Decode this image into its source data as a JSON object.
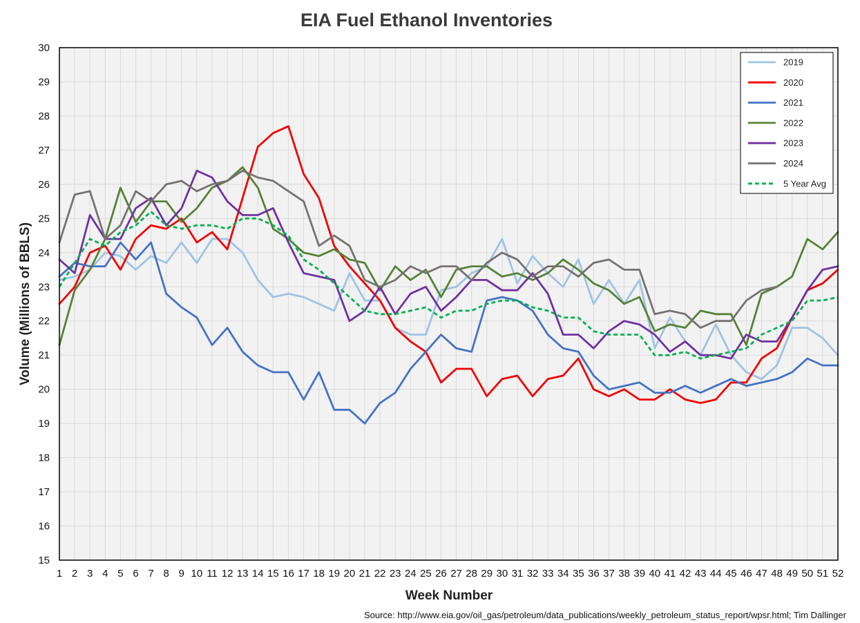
{
  "chart_data": {
    "type": "line",
    "title": "EIA Fuel Ethanol Inventories",
    "xlabel": "Week Number",
    "ylabel": "Volume (Millions of BBLS)",
    "xlim": [
      1,
      52
    ],
    "ylim": [
      15,
      30
    ],
    "yticks": [
      15,
      16,
      17,
      18,
      19,
      20,
      21,
      22,
      23,
      24,
      25,
      26,
      27,
      28,
      29,
      30
    ],
    "x": [
      1,
      2,
      3,
      4,
      5,
      6,
      7,
      8,
      9,
      10,
      11,
      12,
      13,
      14,
      15,
      16,
      17,
      18,
      19,
      20,
      21,
      22,
      23,
      24,
      25,
      26,
      27,
      28,
      29,
      30,
      31,
      32,
      33,
      34,
      35,
      36,
      37,
      38,
      39,
      40,
      41,
      42,
      43,
      44,
      45,
      46,
      47,
      48,
      49,
      50,
      51,
      52
    ],
    "grid": true,
    "legend_position": "top-right",
    "series": [
      {
        "name": "2019",
        "color": "#9DC3E6",
        "dashed": false,
        "values": [
          23.2,
          23.3,
          23.5,
          24.0,
          23.9,
          23.5,
          23.9,
          23.7,
          24.3,
          23.7,
          24.4,
          24.4,
          24.0,
          23.2,
          22.7,
          22.8,
          22.7,
          22.5,
          22.3,
          23.4,
          22.6,
          22.6,
          21.8,
          21.6,
          21.6,
          22.9,
          23.0,
          23.4,
          23.6,
          24.4,
          23.1,
          23.9,
          23.4,
          23.0,
          23.8,
          22.5,
          23.2,
          22.5,
          23.2,
          21.2,
          22.1,
          21.4,
          21.0,
          21.9,
          21.0,
          20.5,
          20.3,
          20.7,
          21.8,
          21.8,
          21.5,
          21.0
        ]
      },
      {
        "name": "2020",
        "color": "#F00000",
        "dashed": false,
        "values": [
          22.5,
          23.0,
          24.0,
          24.2,
          23.5,
          24.4,
          24.8,
          24.7,
          25.0,
          24.3,
          24.6,
          24.1,
          25.6,
          27.1,
          27.5,
          27.7,
          26.3,
          25.6,
          24.2,
          23.6,
          23.1,
          22.6,
          21.8,
          21.4,
          21.1,
          20.2,
          20.6,
          20.6,
          19.8,
          20.3,
          20.4,
          19.8,
          20.3,
          20.4,
          20.9,
          20.0,
          19.8,
          20.0,
          19.7,
          19.7,
          20.0,
          19.7,
          19.6,
          19.7,
          20.2,
          20.2,
          20.9,
          21.2,
          22.1,
          22.9,
          23.1,
          23.5
        ]
      },
      {
        "name": "2021",
        "color": "#4472C4",
        "dashed": false,
        "values": [
          23.3,
          23.7,
          23.6,
          23.6,
          24.3,
          23.8,
          24.3,
          22.8,
          22.4,
          22.1,
          21.3,
          21.8,
          21.1,
          20.7,
          20.5,
          20.5,
          19.7,
          20.5,
          19.4,
          19.4,
          19.0,
          19.6,
          19.9,
          20.6,
          21.1,
          21.6,
          21.2,
          21.1,
          22.6,
          22.7,
          22.6,
          22.3,
          21.6,
          21.2,
          21.1,
          20.4,
          20.0,
          20.1,
          20.2,
          19.9,
          19.9,
          20.1,
          19.9,
          20.1,
          20.3,
          20.1,
          20.2,
          20.3,
          20.5,
          20.9,
          20.7,
          20.7
        ]
      },
      {
        "name": "2022",
        "color": "#548235",
        "dashed": false,
        "values": [
          21.3,
          22.9,
          23.5,
          24.4,
          25.9,
          24.9,
          25.5,
          25.5,
          24.9,
          25.3,
          25.9,
          26.1,
          26.5,
          25.9,
          24.7,
          24.4,
          24.0,
          23.9,
          24.1,
          23.8,
          23.7,
          22.9,
          23.6,
          23.2,
          23.5,
          22.7,
          23.5,
          23.6,
          23.6,
          23.3,
          23.4,
          23.2,
          23.4,
          23.8,
          23.5,
          23.1,
          22.9,
          22.5,
          22.7,
          21.7,
          21.9,
          21.8,
          22.3,
          22.2,
          22.2,
          21.3,
          22.8,
          23.0,
          23.3,
          24.4,
          24.1,
          24.6
        ]
      },
      {
        "name": "2023",
        "color": "#7030A0",
        "dashed": false,
        "values": [
          23.8,
          23.4,
          25.1,
          24.4,
          24.4,
          25.3,
          25.6,
          24.8,
          25.3,
          26.4,
          26.2,
          25.5,
          25.1,
          25.1,
          25.3,
          24.3,
          23.4,
          23.3,
          23.2,
          22.0,
          22.3,
          23.0,
          22.2,
          22.8,
          23.0,
          22.3,
          22.7,
          23.2,
          23.2,
          22.9,
          22.9,
          23.4,
          22.8,
          21.6,
          21.6,
          21.2,
          21.7,
          22.0,
          21.9,
          21.6,
          21.1,
          21.4,
          21.0,
          21.0,
          20.9,
          21.6,
          21.4,
          21.4,
          22.1,
          22.9,
          23.5,
          23.6
        ]
      },
      {
        "name": "2024",
        "color": "#767171",
        "dashed": false,
        "values": [
          24.3,
          25.7,
          25.8,
          24.4,
          24.8,
          25.8,
          25.5,
          26.0,
          26.1,
          25.8,
          26.0,
          26.1,
          26.4,
          26.2,
          26.1,
          25.8,
          25.5,
          24.2,
          24.5,
          24.2,
          23.2,
          23.0,
          23.2,
          23.6,
          23.4,
          23.6,
          23.6,
          23.2,
          23.7,
          24.0,
          23.8,
          23.3,
          23.6,
          23.6,
          23.3,
          23.7,
          23.8,
          23.5,
          23.5,
          22.2,
          22.3,
          22.2,
          21.8,
          22.0,
          22.0,
          22.6,
          22.9,
          23.0,
          null,
          null,
          null,
          null
        ]
      },
      {
        "name": "5 Year Avg",
        "color": "#00B050",
        "dashed": true,
        "values": [
          23.0,
          23.7,
          24.4,
          24.2,
          24.6,
          24.8,
          25.2,
          24.8,
          24.7,
          24.8,
          24.8,
          24.7,
          25.0,
          25.0,
          24.8,
          24.5,
          23.8,
          23.5,
          23.1,
          22.7,
          22.3,
          22.2,
          22.2,
          22.3,
          22.4,
          22.1,
          22.3,
          22.3,
          22.5,
          22.6,
          22.6,
          22.4,
          22.3,
          22.1,
          22.1,
          21.7,
          21.6,
          21.6,
          21.6,
          21.0,
          21.0,
          21.1,
          20.9,
          21.0,
          21.1,
          21.2,
          21.6,
          21.8,
          22.0,
          22.6,
          22.6,
          22.7
        ]
      }
    ]
  },
  "source_note": "Source: http://www.eia.gov/oil_gas/petroleum/data_publications/weekly_petroleum_status_report/wpsr.html; Tim Dallinger"
}
